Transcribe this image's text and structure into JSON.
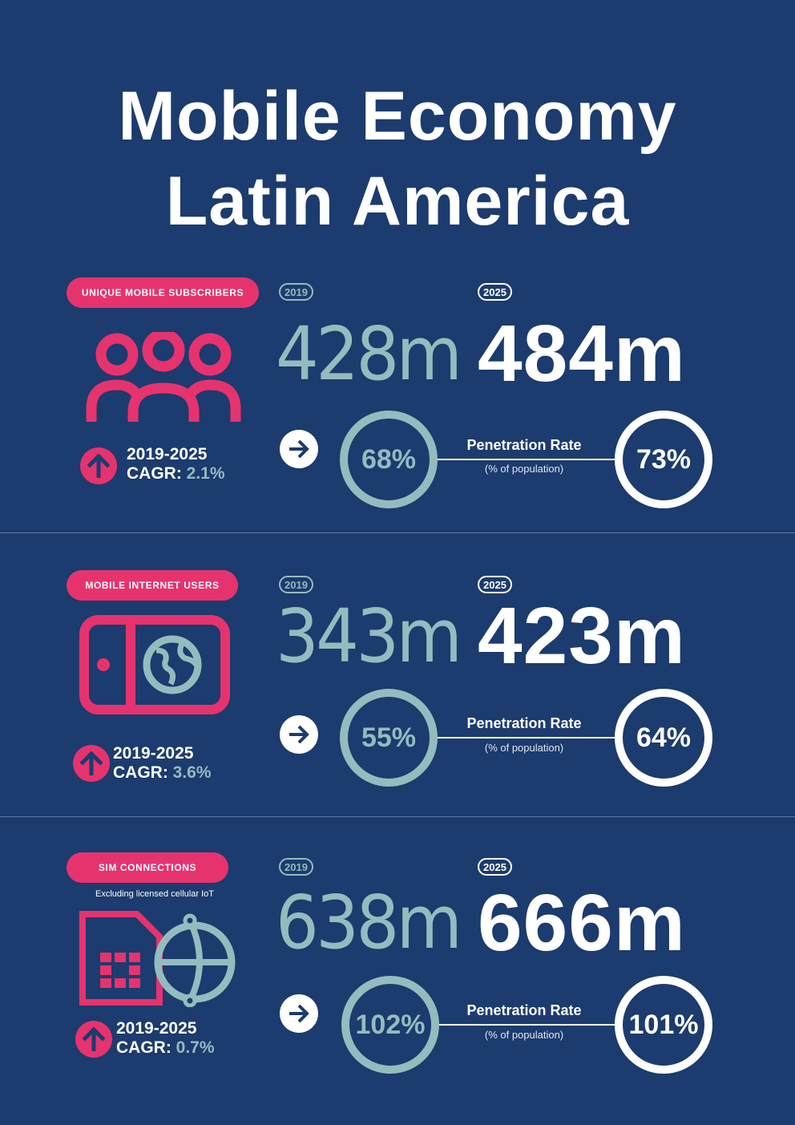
{
  "title": {
    "line1": "Mobile Economy",
    "line2": "Latin America"
  },
  "colors": {
    "background": "#1c3b6e",
    "accent": "#e6336e",
    "teal": "#94bcbe",
    "white": "#ffffff"
  },
  "sections": [
    {
      "label": "UNIQUE MOBILE SUBSCRIBERS",
      "icon": "people-group-icon",
      "year_2019": "2019",
      "value_2019": "428m",
      "year_2025": "2025",
      "value_2025": "484m",
      "pen_2019": "68%",
      "pen_2025": "73%",
      "pen_title": "Penetration Rate",
      "pen_sub": "(% of population)",
      "cagr_years": "2019-2025",
      "cagr_label": "CAGR:",
      "cagr_value": "2.1%"
    },
    {
      "label": "MOBILE INTERNET USERS",
      "icon": "phone-globe-icon",
      "year_2019": "2019",
      "value_2019": "343m",
      "year_2025": "2025",
      "value_2025": "423m",
      "pen_2019": "55%",
      "pen_2025": "64%",
      "pen_title": "Penetration Rate",
      "pen_sub": "(% of population)",
      "cagr_years": "2019-2025",
      "cagr_label": "CAGR:",
      "cagr_value": "3.6%"
    },
    {
      "label": "SIM CONNECTIONS",
      "note": "Excluding licensed cellular IoT",
      "icon": "sim-card-globe-icon",
      "year_2019": "2019",
      "value_2019": "638m",
      "year_2025": "2025",
      "value_2025": "666m",
      "pen_2019": "102%",
      "pen_2025": "101%",
      "pen_title": "Penetration Rate",
      "pen_sub": "(% of population)",
      "cagr_years": "2019-2025",
      "cagr_label": "CAGR:",
      "cagr_value": "0.7%"
    }
  ]
}
